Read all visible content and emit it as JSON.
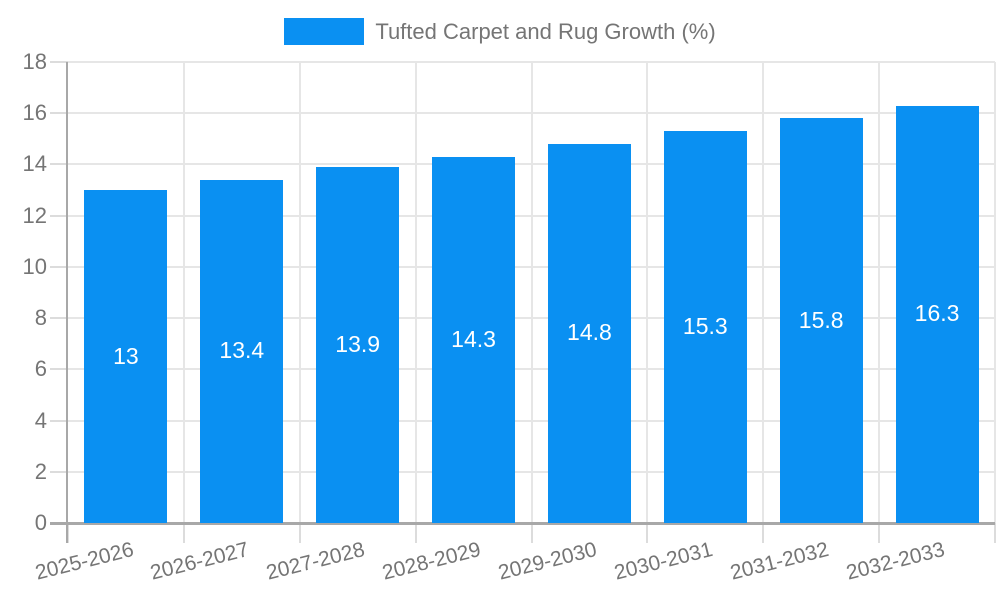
{
  "legend": {
    "label": "Tufted Carpet and Rug Growth (%)"
  },
  "colors": {
    "bar": "#0a90f2",
    "axis_line": "#a8a8a8",
    "grid_line": "#e6e6e6",
    "tick_line": "#dcdcdc",
    "text": "#757575",
    "bar_label": "#ffffff",
    "background": "#ffffff"
  },
  "chart_data": {
    "type": "bar",
    "title": "Tufted Carpet and Rug Growth (%)",
    "series_name": "Tufted Carpet and Rug Growth (%)",
    "categories": [
      "2025-2026",
      "2026-2027",
      "2027-2028",
      "2028-2029",
      "2029-2030",
      "2030-2031",
      "2031-2032",
      "2032-2033"
    ],
    "values": [
      13,
      13.4,
      13.9,
      14.3,
      14.8,
      15.3,
      15.8,
      16.3
    ],
    "xlabel": "",
    "ylabel": "",
    "ylim": [
      0,
      18
    ],
    "ytick_step": 2,
    "yticks": [
      0,
      2,
      4,
      6,
      8,
      10,
      12,
      14,
      16,
      18
    ],
    "grid": true,
    "legend_position": "top",
    "x_label_rotation_deg": -14,
    "value_labels_shown": true
  }
}
